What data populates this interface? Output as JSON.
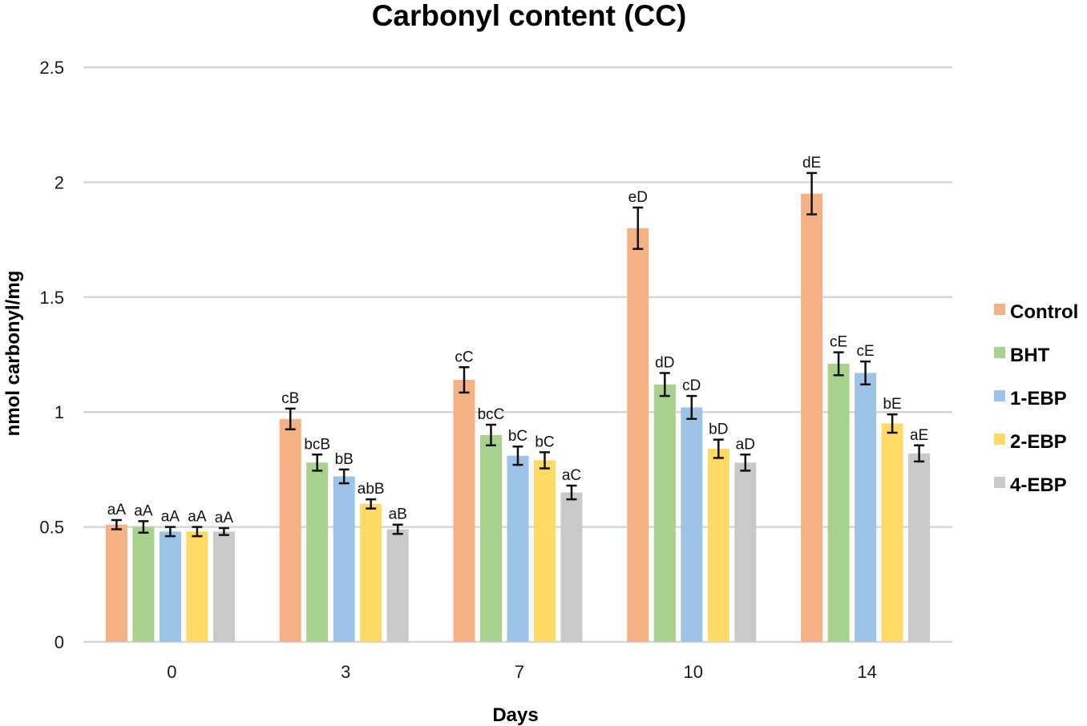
{
  "chart_data": {
    "type": "bar",
    "title": "Carbonyl content (CC)",
    "xlabel": "Days",
    "ylabel": "nmol carbonyl/mg",
    "ylim": [
      0,
      2.5
    ],
    "yticks": [
      0,
      0.5,
      1,
      1.5,
      2,
      2.5
    ],
    "ytick_labels": [
      "0",
      "0.5",
      "1",
      "1.5",
      "2",
      "2.5"
    ],
    "grid": true,
    "legend_position": "right",
    "categories": [
      "0",
      "3",
      "7",
      "10",
      "14"
    ],
    "series": [
      {
        "name": "Control",
        "color": "#f4b183",
        "values": [
          0.51,
          0.97,
          1.14,
          1.8,
          1.95
        ],
        "errors": [
          0.02,
          0.045,
          0.055,
          0.09,
          0.09
        ],
        "labels": [
          "aA",
          "cB",
          "cC",
          "eD",
          "dE"
        ]
      },
      {
        "name": "BHT",
        "color": "#a9d18e",
        "values": [
          0.5,
          0.78,
          0.9,
          1.12,
          1.21
        ],
        "errors": [
          0.025,
          0.035,
          0.045,
          0.05,
          0.05
        ],
        "labels": [
          "aA",
          "bcB",
          "bcC",
          "dD",
          "cE"
        ]
      },
      {
        "name": "1-EBP",
        "color": "#9dc3e6",
        "values": [
          0.48,
          0.72,
          0.81,
          1.02,
          1.17
        ],
        "errors": [
          0.02,
          0.03,
          0.04,
          0.05,
          0.05
        ],
        "labels": [
          "aA",
          "bB",
          "bC",
          "cD",
          "cE"
        ]
      },
      {
        "name": "2-EBP",
        "color": "#ffd966",
        "values": [
          0.48,
          0.6,
          0.79,
          0.84,
          0.95
        ],
        "errors": [
          0.02,
          0.02,
          0.035,
          0.04,
          0.04
        ],
        "labels": [
          "aA",
          "abB",
          "bC",
          "bD",
          "bE"
        ]
      },
      {
        "name": "4-EBP",
        "color": "#c9c9c9",
        "values": [
          0.48,
          0.49,
          0.65,
          0.78,
          0.82
        ],
        "errors": [
          0.015,
          0.02,
          0.03,
          0.035,
          0.035
        ],
        "labels": [
          "aA",
          "aB",
          "aC",
          "aD",
          "aE"
        ]
      }
    ]
  }
}
